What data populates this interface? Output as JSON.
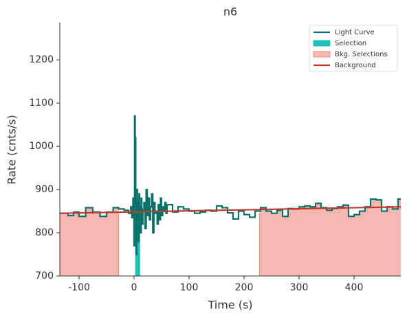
{
  "chart_data": {
    "type": "lightcurve",
    "title": "n6",
    "x_label": "Time (s)",
    "y_label": "Rate (cnts/s)",
    "xlim": [
      -135,
      485
    ],
    "ylim": [
      700,
      1286
    ],
    "xticks": [
      -100,
      0,
      100,
      200,
      300,
      400
    ],
    "yticks": [
      700,
      800,
      900,
      1000,
      1100,
      1200
    ],
    "series": [
      {
        "name": "Light Curve",
        "color": "#0b7068",
        "x": [
          -135,
          -120,
          -110,
          -100,
          -88,
          -75,
          -62,
          -50,
          -38,
          -28,
          -18,
          -10,
          -6,
          -4,
          -2,
          0,
          1,
          2,
          3,
          4,
          5,
          6,
          7,
          8,
          9,
          10,
          11,
          12,
          13,
          14,
          15,
          16,
          18,
          20,
          22,
          24,
          26,
          28,
          30,
          32,
          34,
          36,
          38,
          40,
          42,
          44,
          46,
          48,
          50,
          52,
          54,
          56,
          58,
          60,
          70,
          80,
          90,
          100,
          110,
          120,
          130,
          140,
          150,
          160,
          170,
          180,
          190,
          200,
          210,
          220,
          230,
          240,
          250,
          260,
          270,
          280,
          290,
          300,
          310,
          320,
          330,
          340,
          350,
          360,
          370,
          380,
          390,
          400,
          410,
          420,
          430,
          440,
          450,
          460,
          470,
          480
        ],
        "values": [
          845,
          840,
          848,
          838,
          858,
          848,
          838,
          848,
          858,
          855,
          852,
          845,
          860,
          835,
          880,
          770,
          1070,
          1020,
          860,
          750,
          900,
          830,
          870,
          780,
          890,
          840,
          860,
          800,
          880,
          855,
          820,
          850,
          870,
          810,
          900,
          840,
          880,
          830,
          860,
          890,
          800,
          870,
          845,
          850,
          820,
          865,
          830,
          880,
          840,
          860,
          850,
          870,
          845,
          865,
          848,
          860,
          855,
          850,
          845,
          848,
          852,
          850,
          862,
          858,
          846,
          832,
          850,
          842,
          836,
          850,
          858,
          850,
          845,
          852,
          838,
          856,
          855,
          860,
          862,
          860,
          868,
          858,
          852,
          856,
          860,
          864,
          838,
          842,
          850,
          860,
          878,
          876,
          850,
          860,
          855,
          878
        ]
      },
      {
        "name": "Selection",
        "color": "#1fc2b4",
        "range": [
          2,
          11
        ]
      },
      {
        "name": "Bkg. Selections",
        "color": "#f5b7b1",
        "edge": "#f08a80",
        "ranges": [
          [
            -135,
            -28
          ],
          [
            228,
            485
          ]
        ]
      },
      {
        "name": "Background",
        "color": "#c0392b",
        "x": [
          -135,
          485
        ],
        "values": [
          845,
          860
        ]
      }
    ]
  }
}
